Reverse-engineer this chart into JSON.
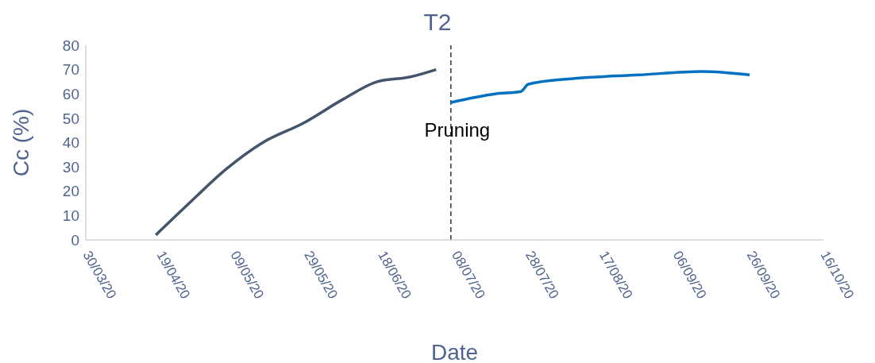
{
  "chart_data": {
    "type": "line",
    "title": "T2",
    "xlabel": "Date",
    "ylabel": "Cc (%)",
    "xlim": [
      "2020-03-30",
      "2020-10-16"
    ],
    "xticks": [
      {
        "value": "2020-03-30",
        "label": "30/03/20"
      },
      {
        "value": "2020-04-19",
        "label": "19/04/20"
      },
      {
        "value": "2020-05-09",
        "label": "09/05/20"
      },
      {
        "value": "2020-05-29",
        "label": "29/05/20"
      },
      {
        "value": "2020-06-18",
        "label": "18/06/20"
      },
      {
        "value": "2020-07-08",
        "label": "08/07/20"
      },
      {
        "value": "2020-07-28",
        "label": "28/07/20"
      },
      {
        "value": "2020-08-17",
        "label": "17/08/20"
      },
      {
        "value": "2020-09-06",
        "label": "06/09/20"
      },
      {
        "value": "2020-09-26",
        "label": "26/09/20"
      },
      {
        "value": "2020-10-16",
        "label": "16/10/20"
      }
    ],
    "ylim": [
      0,
      80
    ],
    "yticks": [
      0,
      10,
      20,
      30,
      40,
      50,
      60,
      70,
      80
    ],
    "series": [
      {
        "color": "#44546a",
        "x": [
          "2020-04-18",
          "2020-04-27",
          "2020-05-07",
          "2020-05-17",
          "2020-05-28",
          "2020-06-08",
          "2020-06-17",
          "2020-06-26",
          "2020-07-03"
        ],
        "values": [
          2,
          15,
          29,
          40,
          48,
          58,
          65,
          67,
          70
        ]
      },
      {
        "color": "#0070c0",
        "x": [
          "2020-07-07",
          "2020-07-19",
          "2020-07-26",
          "2020-07-28",
          "2020-08-09",
          "2020-08-27",
          "2020-09-13",
          "2020-09-26"
        ],
        "values": [
          56.5,
          60,
          61,
          64,
          66.3,
          67.8,
          69.2,
          67.8
        ]
      }
    ],
    "ref_lines": [
      {
        "axis": "x",
        "value": "2020-07-07",
        "label": "Pruning",
        "color": "#333333",
        "line_style": "dashed"
      }
    ],
    "grid": false,
    "legend": false,
    "marker": "none",
    "line_style": "solid"
  }
}
